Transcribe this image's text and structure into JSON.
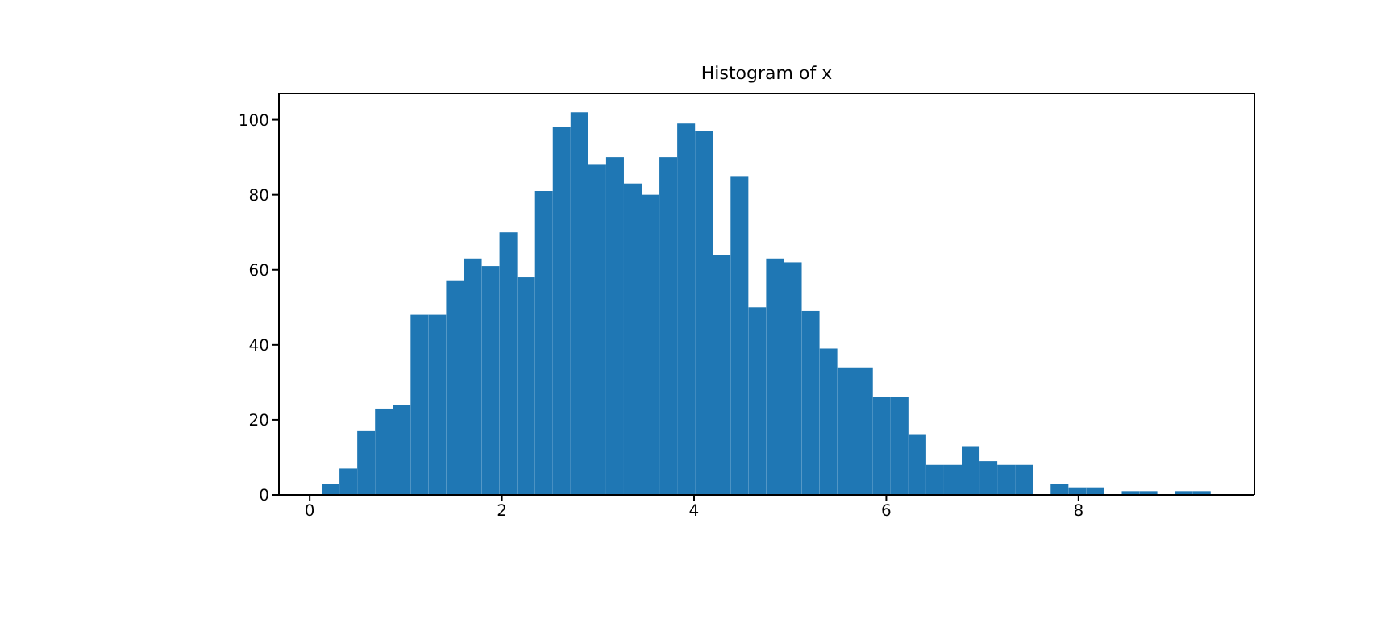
{
  "chart_data": {
    "type": "histogram",
    "title": "Histogram of x",
    "bins": [
      0.125,
      0.31,
      0.495,
      0.68,
      0.865,
      1.05,
      1.235,
      1.42,
      1.605,
      1.79,
      1.975,
      2.16,
      2.345,
      2.53,
      2.715,
      2.9,
      3.085,
      3.27,
      3.455,
      3.64,
      3.825,
      4.01,
      4.195,
      4.38,
      4.565,
      4.75,
      4.935,
      5.12,
      5.305,
      5.49,
      5.675,
      5.86,
      6.045,
      6.23,
      6.415,
      6.6,
      6.785,
      6.97,
      7.155,
      7.34,
      7.525,
      7.71,
      7.895,
      8.08,
      8.265,
      8.45,
      8.635,
      8.82,
      9.005,
      9.19,
      9.375
    ],
    "values": [
      3,
      7,
      17,
      23,
      24,
      48,
      48,
      57,
      63,
      61,
      70,
      58,
      81,
      98,
      102,
      88,
      90,
      83,
      80,
      90,
      99,
      97,
      64,
      85,
      50,
      63,
      62,
      49,
      39,
      34,
      34,
      26,
      26,
      16,
      8,
      8,
      13,
      9,
      8,
      8,
      0,
      3,
      2,
      2,
      0,
      1,
      1,
      0,
      1,
      1
    ],
    "color": "#1f77b4",
    "xlim": [
      -0.32,
      9.83
    ],
    "xticks": [
      0,
      2,
      4,
      6,
      8
    ],
    "ylim": [
      0,
      107
    ],
    "yticks": [
      0,
      20,
      40,
      60,
      80,
      100
    ],
    "grid": false,
    "legend": false
  }
}
